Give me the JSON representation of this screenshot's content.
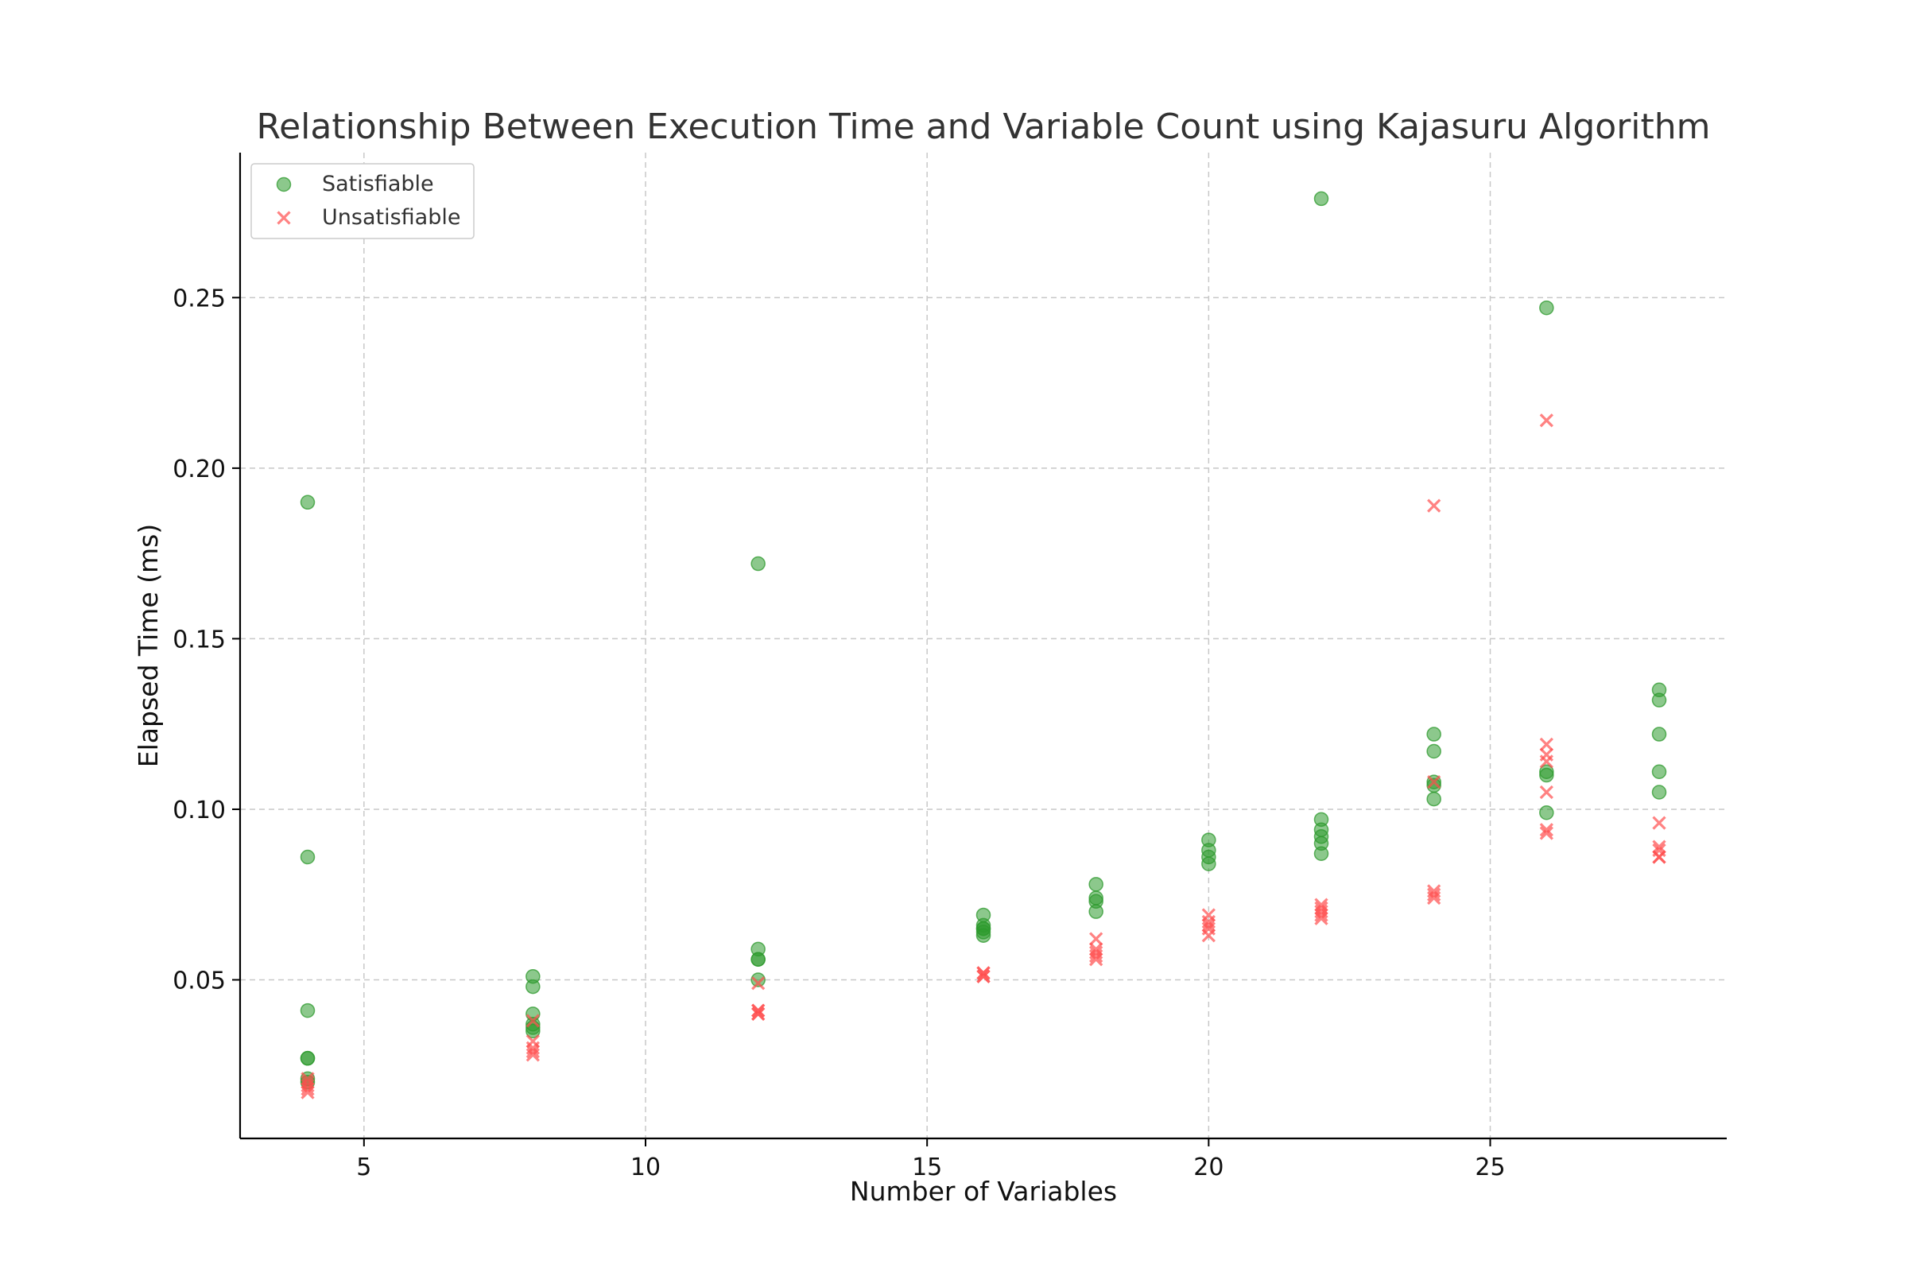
{
  "chart_data": {
    "type": "scatter",
    "title": "Relationship Between Execution Time and Variable Count using Kajasuru Algorithm",
    "xlabel": "Number of Variables",
    "ylabel": "Elapsed Time (ms)",
    "xlim": [
      2.8,
      29.2
    ],
    "ylim": [
      0.0035,
      0.2925
    ],
    "xticks": [
      5,
      10,
      15,
      20,
      25
    ],
    "xtick_labels": [
      "5",
      "10",
      "15",
      "20",
      "25"
    ],
    "yticks": [
      0.05,
      0.1,
      0.15,
      0.2,
      0.25
    ],
    "ytick_labels": [
      "0.05",
      "0.10",
      "0.15",
      "0.20",
      "0.25"
    ],
    "grid": true,
    "legend_position": "top-left",
    "series": [
      {
        "name": "Satisfiable",
        "marker": "circle",
        "color": "#2e9a2e",
        "points": [
          [
            4,
            0.19
          ],
          [
            4,
            0.086
          ],
          [
            4,
            0.041
          ],
          [
            4,
            0.027
          ],
          [
            4,
            0.027
          ],
          [
            4,
            0.021
          ],
          [
            4,
            0.02
          ],
          [
            8,
            0.051
          ],
          [
            8,
            0.048
          ],
          [
            8,
            0.04
          ],
          [
            8,
            0.037
          ],
          [
            8,
            0.036
          ],
          [
            8,
            0.035
          ],
          [
            12,
            0.172
          ],
          [
            12,
            0.059
          ],
          [
            12,
            0.056
          ],
          [
            12,
            0.056
          ],
          [
            12,
            0.05
          ],
          [
            16,
            0.069
          ],
          [
            16,
            0.066
          ],
          [
            16,
            0.065
          ],
          [
            16,
            0.065
          ],
          [
            16,
            0.064
          ],
          [
            16,
            0.063
          ],
          [
            18,
            0.078
          ],
          [
            18,
            0.074
          ],
          [
            18,
            0.073
          ],
          [
            18,
            0.07
          ],
          [
            20,
            0.091
          ],
          [
            20,
            0.088
          ],
          [
            20,
            0.086
          ],
          [
            20,
            0.084
          ],
          [
            22,
            0.279
          ],
          [
            22,
            0.097
          ],
          [
            22,
            0.094
          ],
          [
            22,
            0.092
          ],
          [
            22,
            0.09
          ],
          [
            22,
            0.087
          ],
          [
            24,
            0.122
          ],
          [
            24,
            0.117
          ],
          [
            24,
            0.108
          ],
          [
            24,
            0.107
          ],
          [
            24,
            0.103
          ],
          [
            26,
            0.247
          ],
          [
            26,
            0.111
          ],
          [
            26,
            0.11
          ],
          [
            26,
            0.099
          ],
          [
            28,
            0.135
          ],
          [
            28,
            0.132
          ],
          [
            28,
            0.122
          ],
          [
            28,
            0.111
          ],
          [
            28,
            0.105
          ]
        ]
      },
      {
        "name": "Unsatisfiable",
        "marker": "x",
        "color": "#ff4d4d",
        "points": [
          [
            4,
            0.021
          ],
          [
            4,
            0.02
          ],
          [
            4,
            0.019
          ],
          [
            4,
            0.018
          ],
          [
            4,
            0.017
          ],
          [
            8,
            0.038
          ],
          [
            8,
            0.032
          ],
          [
            8,
            0.03
          ],
          [
            8,
            0.029
          ],
          [
            8,
            0.028
          ],
          [
            12,
            0.049
          ],
          [
            12,
            0.041
          ],
          [
            12,
            0.041
          ],
          [
            12,
            0.04
          ],
          [
            12,
            0.04
          ],
          [
            16,
            0.052
          ],
          [
            16,
            0.052
          ],
          [
            16,
            0.051
          ],
          [
            16,
            0.051
          ],
          [
            18,
            0.062
          ],
          [
            18,
            0.059
          ],
          [
            18,
            0.058
          ],
          [
            18,
            0.057
          ],
          [
            18,
            0.056
          ],
          [
            20,
            0.069
          ],
          [
            20,
            0.067
          ],
          [
            20,
            0.066
          ],
          [
            20,
            0.065
          ],
          [
            20,
            0.063
          ],
          [
            22,
            0.072
          ],
          [
            22,
            0.071
          ],
          [
            22,
            0.07
          ],
          [
            22,
            0.069
          ],
          [
            22,
            0.068
          ],
          [
            24,
            0.189
          ],
          [
            24,
            0.108
          ],
          [
            24,
            0.076
          ],
          [
            24,
            0.075
          ],
          [
            24,
            0.074
          ],
          [
            26,
            0.214
          ],
          [
            26,
            0.119
          ],
          [
            26,
            0.116
          ],
          [
            26,
            0.114
          ],
          [
            26,
            0.105
          ],
          [
            26,
            0.094
          ],
          [
            26,
            0.093
          ],
          [
            28,
            0.096
          ],
          [
            28,
            0.089
          ],
          [
            28,
            0.088
          ],
          [
            28,
            0.086
          ],
          [
            28,
            0.086
          ]
        ]
      }
    ]
  }
}
